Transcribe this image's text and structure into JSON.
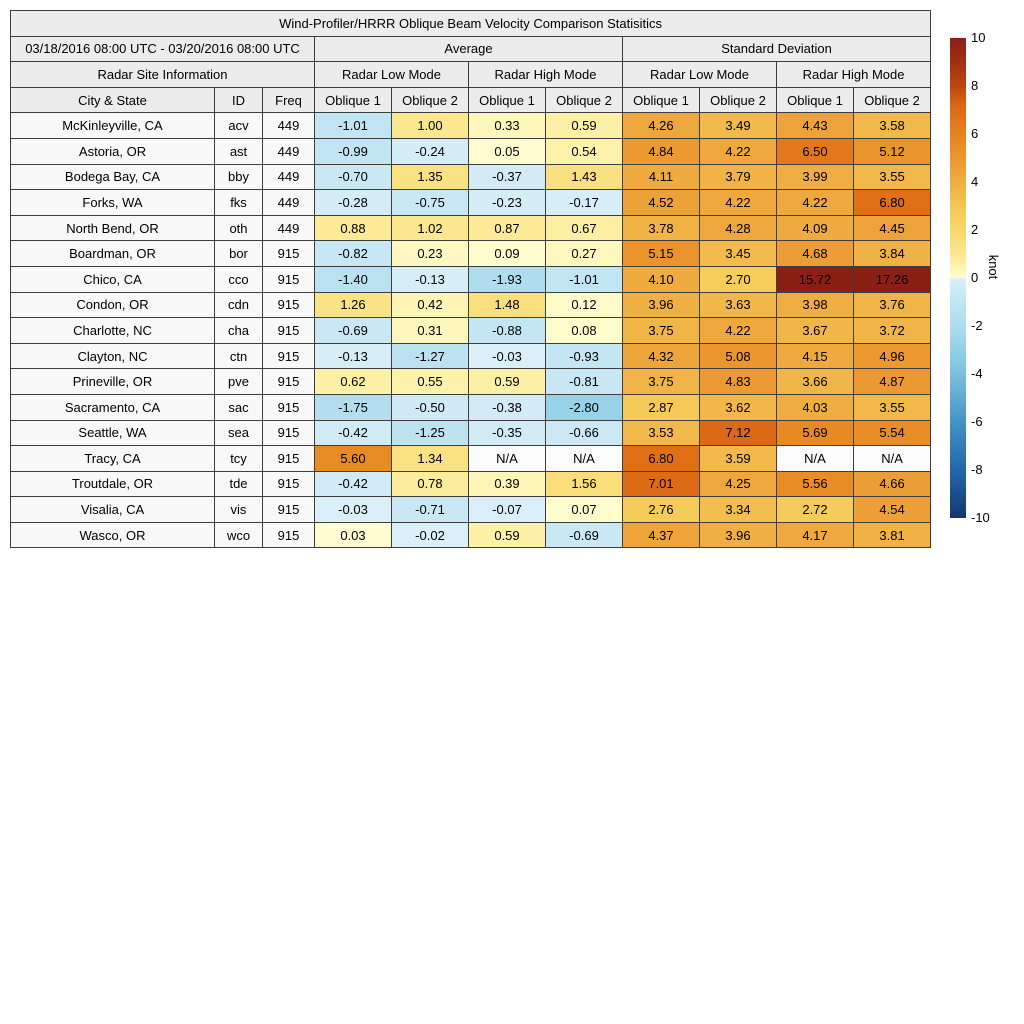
{
  "chart_data": {
    "type": "heatmap",
    "title": "Wind-Profiler/HRRR Oblique Beam Velocity Comparison Statisitics",
    "header": {
      "date_range": "03/18/2016 08:00 UTC - 03/20/2016 08:00 UTC",
      "group_average": "Average",
      "group_std": "Standard Deviation",
      "site_info": "Radar Site Information",
      "mode_labels": [
        "Radar Low Mode",
        "Radar High Mode",
        "Radar Low Mode",
        "Radar High Mode"
      ],
      "col_city": "City & State",
      "col_id": "ID",
      "col_freq": "Freq",
      "oblique_headers": [
        "Oblique 1",
        "Oblique 2",
        "Oblique 1",
        "Oblique 2",
        "Oblique 1",
        "Oblique 2",
        "Oblique 1",
        "Oblique 2"
      ]
    },
    "rows": [
      {
        "city": "McKinleyville, CA",
        "id": "acv",
        "freq": "449",
        "values": [
          "-1.01",
          "1.00",
          "0.33",
          "0.59",
          "4.26",
          "3.49",
          "4.43",
          "3.58"
        ]
      },
      {
        "city": "Astoria, OR",
        "id": "ast",
        "freq": "449",
        "values": [
          "-0.99",
          "-0.24",
          "0.05",
          "0.54",
          "4.84",
          "4.22",
          "6.50",
          "5.12"
        ]
      },
      {
        "city": "Bodega Bay, CA",
        "id": "bby",
        "freq": "449",
        "values": [
          "-0.70",
          "1.35",
          "-0.37",
          "1.43",
          "4.11",
          "3.79",
          "3.99",
          "3.55"
        ]
      },
      {
        "city": "Forks, WA",
        "id": "fks",
        "freq": "449",
        "values": [
          "-0.28",
          "-0.75",
          "-0.23",
          "-0.17",
          "4.52",
          "4.22",
          "4.22",
          "6.80"
        ]
      },
      {
        "city": "North Bend, OR",
        "id": "oth",
        "freq": "449",
        "values": [
          "0.88",
          "1.02",
          "0.87",
          "0.67",
          "3.78",
          "4.28",
          "4.09",
          "4.45"
        ]
      },
      {
        "city": "Boardman, OR",
        "id": "bor",
        "freq": "915",
        "values": [
          "-0.82",
          "0.23",
          "0.09",
          "0.27",
          "5.15",
          "3.45",
          "4.68",
          "3.84"
        ]
      },
      {
        "city": "Chico, CA",
        "id": "cco",
        "freq": "915",
        "values": [
          "-1.40",
          "-0.13",
          "-1.93",
          "-1.01",
          "4.10",
          "2.70",
          "15.72",
          "17.26"
        ]
      },
      {
        "city": "Condon, OR",
        "id": "cdn",
        "freq": "915",
        "values": [
          "1.26",
          "0.42",
          "1.48",
          "0.12",
          "3.96",
          "3.63",
          "3.98",
          "3.76"
        ]
      },
      {
        "city": "Charlotte, NC",
        "id": "cha",
        "freq": "915",
        "values": [
          "-0.69",
          "0.31",
          "-0.88",
          "0.08",
          "3.75",
          "4.22",
          "3.67",
          "3.72"
        ]
      },
      {
        "city": "Clayton, NC",
        "id": "ctn",
        "freq": "915",
        "values": [
          "-0.13",
          "-1.27",
          "-0.03",
          "-0.93",
          "4.32",
          "5.08",
          "4.15",
          "4.96"
        ]
      },
      {
        "city": "Prineville, OR",
        "id": "pve",
        "freq": "915",
        "values": [
          "0.62",
          "0.55",
          "0.59",
          "-0.81",
          "3.75",
          "4.83",
          "3.66",
          "4.87"
        ]
      },
      {
        "city": "Sacramento, CA",
        "id": "sac",
        "freq": "915",
        "values": [
          "-1.75",
          "-0.50",
          "-0.38",
          "-2.80",
          "2.87",
          "3.62",
          "4.03",
          "3.55"
        ]
      },
      {
        "city": "Seattle, WA",
        "id": "sea",
        "freq": "915",
        "values": [
          "-0.42",
          "-1.25",
          "-0.35",
          "-0.66",
          "3.53",
          "7.12",
          "5.69",
          "5.54"
        ]
      },
      {
        "city": "Tracy, CA",
        "id": "tcy",
        "freq": "915",
        "values": [
          "5.60",
          "1.34",
          "N/A",
          "N/A",
          "6.80",
          "3.59",
          "N/A",
          "N/A"
        ]
      },
      {
        "city": "Troutdale, OR",
        "id": "tde",
        "freq": "915",
        "values": [
          "-0.42",
          "0.78",
          "0.39",
          "1.56",
          "7.01",
          "4.25",
          "5.56",
          "4.66"
        ]
      },
      {
        "city": "Visalia, CA",
        "id": "vis",
        "freq": "915",
        "values": [
          "-0.03",
          "-0.71",
          "-0.07",
          "0.07",
          "2.76",
          "3.34",
          "2.72",
          "4.54"
        ]
      },
      {
        "city": "Wasco, OR",
        "id": "wco",
        "freq": "915",
        "values": [
          "0.03",
          "-0.02",
          "0.59",
          "-0.69",
          "4.37",
          "3.96",
          "4.17",
          "3.81"
        ]
      }
    ],
    "colorbar": {
      "label": "knot",
      "min": -10,
      "max": 10,
      "ticks": [
        "10",
        "8",
        "6",
        "4",
        "2",
        "0",
        "-2",
        "-4",
        "-6",
        "-8",
        "-10"
      ],
      "tick_values": [
        10,
        8,
        6,
        4,
        2,
        0,
        -2,
        -4,
        -6,
        -8,
        -10
      ],
      "stops": [
        {
          "v": -10,
          "color": "#12386f"
        },
        {
          "v": -8,
          "color": "#2466ab"
        },
        {
          "v": -6,
          "color": "#4493c6"
        },
        {
          "v": -4,
          "color": "#7cc0dc"
        },
        {
          "v": -3,
          "color": "#93d0e7"
        },
        {
          "v": -2,
          "color": "#aedcee"
        },
        {
          "v": -1.5,
          "color": "#b8e0f0"
        },
        {
          "v": -1,
          "color": "#c1e5f2"
        },
        {
          "v": -0.5,
          "color": "#cfeaf5"
        },
        {
          "v": -0.02,
          "color": "#daeff8"
        },
        {
          "v": 0.02,
          "color": "#fffdd2"
        },
        {
          "v": 0.5,
          "color": "#fdf3ae"
        },
        {
          "v": 1,
          "color": "#fbe78f"
        },
        {
          "v": 1.5,
          "color": "#f9df7d"
        },
        {
          "v": 2,
          "color": "#f8d86c"
        },
        {
          "v": 2.8,
          "color": "#f5cb59"
        },
        {
          "v": 3.5,
          "color": "#f2ba4b"
        },
        {
          "v": 4.5,
          "color": "#eda139"
        },
        {
          "v": 5.6,
          "color": "#e88b22"
        },
        {
          "v": 6.5,
          "color": "#e3771b"
        },
        {
          "v": 7.2,
          "color": "#dc6614"
        },
        {
          "v": 8,
          "color": "#bc470f"
        },
        {
          "v": 9,
          "color": "#a32f10"
        },
        {
          "v": 10,
          "color": "#8a1f13"
        }
      ]
    },
    "na_color": "#fbfbfb"
  }
}
